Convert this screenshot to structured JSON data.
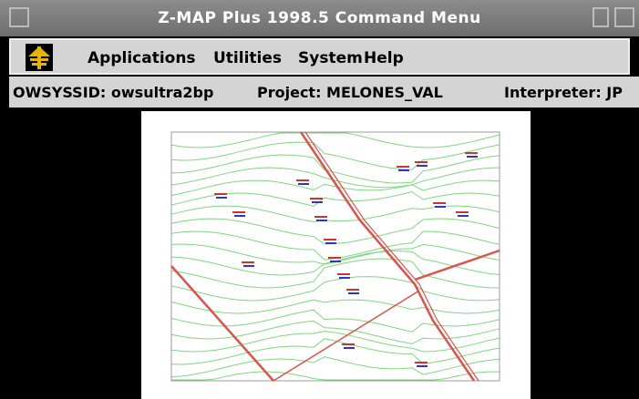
{
  "window": {
    "title": "Z-MAP Plus 1998.5 Command Menu",
    "menu": [
      "Applications",
      "Utilities",
      "System",
      "Help"
    ],
    "status": [
      "OWSYSSID: owsultra2bp",
      "Project: MELONES_VAL",
      "Interpreter: JP"
    ]
  }
}
